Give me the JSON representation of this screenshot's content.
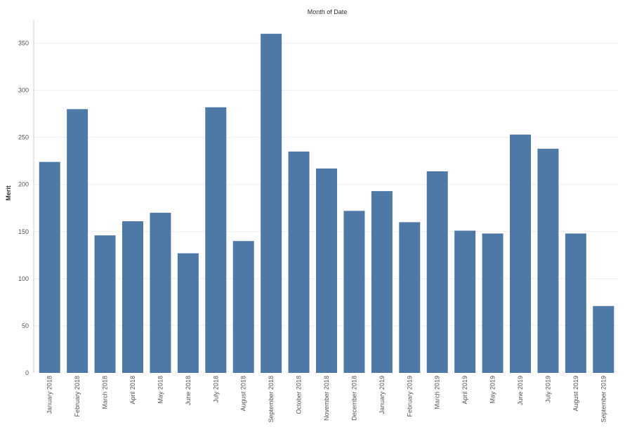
{
  "chart_data": {
    "type": "bar",
    "xlabel": "Month of Date",
    "ylabel": "Merit",
    "ylim": [
      0,
      375
    ],
    "yticks": [
      0,
      50,
      100,
      150,
      200,
      250,
      300,
      350
    ],
    "grid": true,
    "bar_color": "#4e79a7",
    "categories": [
      "January 2018",
      "February 2018",
      "March 2018",
      "April 2018",
      "May 2018",
      "June 2018",
      "July 2018",
      "August 2018",
      "September 2018",
      "October 2018",
      "November 2018",
      "December 2018",
      "January 2019",
      "February 2019",
      "March 2019",
      "April 2019",
      "May 2019",
      "June 2019",
      "July 2019",
      "August 2019",
      "September 2019"
    ],
    "values": [
      224,
      280,
      146,
      161,
      170,
      127,
      282,
      140,
      360,
      235,
      217,
      172,
      193,
      160,
      214,
      151,
      148,
      253,
      238,
      148,
      71
    ]
  }
}
